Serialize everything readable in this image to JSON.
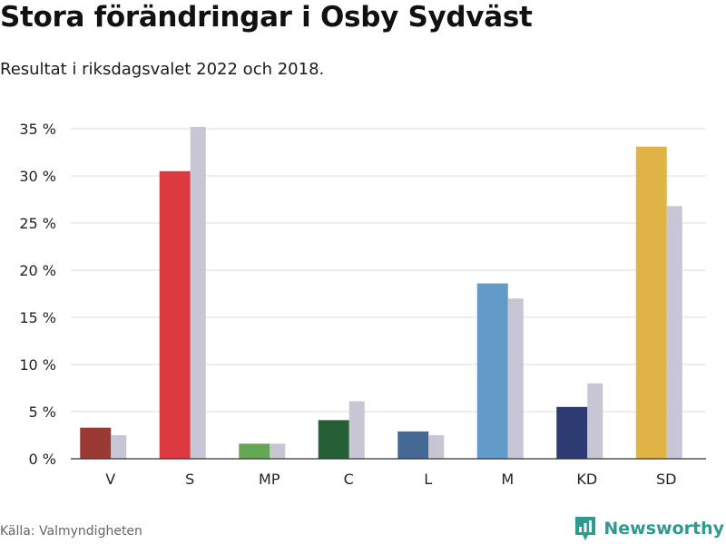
{
  "title": "Stora förändringar i Osby Sydväst",
  "subtitle": "Resultat i riksdagsvalet 2022 och 2018.",
  "source": "Källa: Valmyndigheten",
  "brand": "Newsworthy",
  "colors": {
    "background": "#ffffff",
    "grid": "#dddddd",
    "axis": "#333333",
    "previous_year": "#c8c6d4",
    "brand": "#2f9a8e"
  },
  "chart_data": {
    "type": "bar",
    "title": "Stora förändringar i Osby Sydväst",
    "subtitle": "Resultat i riksdagsvalet 2022 och 2018.",
    "xlabel": "",
    "ylabel": "",
    "categories": [
      "V",
      "S",
      "MP",
      "C",
      "L",
      "M",
      "KD",
      "SD"
    ],
    "series": [
      {
        "values": [
          3.3,
          30.5,
          1.6,
          4.1,
          2.9,
          18.6,
          5.5,
          33.1
        ],
        "colors": [
          "#9b3a35",
          "#dd3940",
          "#65a752",
          "#255f35",
          "#456993",
          "#629ac9",
          "#2e3b72",
          "#dfb444"
        ]
      },
      {
        "values": [
          2.5,
          35.2,
          1.6,
          6.1,
          2.5,
          17.0,
          8.0,
          26.8
        ],
        "color": "#c8c6d4"
      }
    ],
    "yticks": [
      0,
      5,
      10,
      15,
      20,
      25,
      30,
      35
    ],
    "ytick_labels": [
      "0 %",
      "5 %",
      "10 %",
      "15 %",
      "20 %",
      "25 %",
      "30 %",
      "35 %"
    ],
    "ylim": [
      0,
      35
    ],
    "grid": true,
    "legend": false
  }
}
